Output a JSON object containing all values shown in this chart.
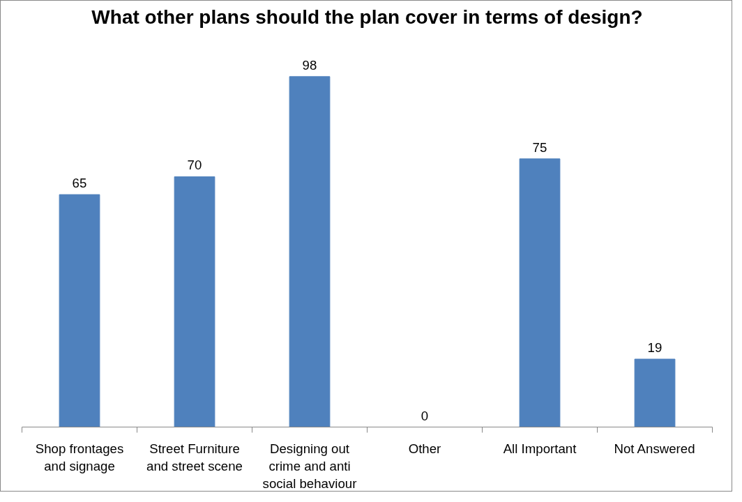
{
  "chart_data": {
    "type": "bar",
    "title": "What other plans should the plan cover in terms of design?",
    "categories": [
      "Shop frontages and signage",
      "Street Furniture and street scene",
      "Designing out crime and anti social behaviour",
      "Other",
      "All Important",
      "Not Answered"
    ],
    "values": [
      65,
      70,
      98,
      0,
      75,
      19
    ],
    "color": "#4f81bd",
    "data_labels": true,
    "grid": false
  }
}
